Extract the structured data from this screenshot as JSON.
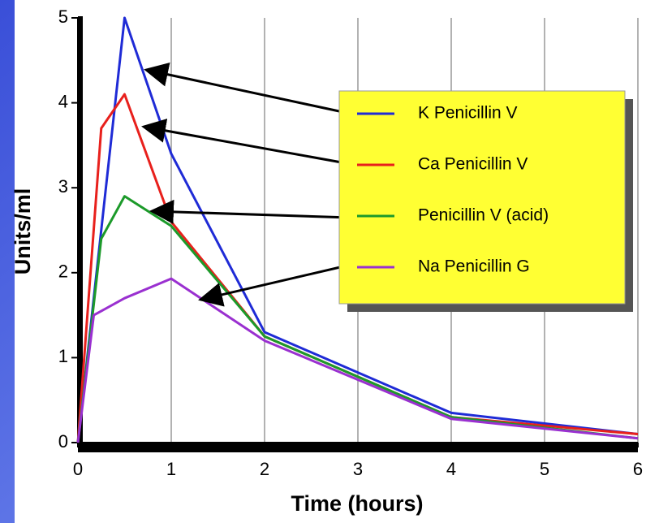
{
  "chart_data": {
    "type": "line",
    "x_label": "Time (hours)",
    "y_label": "Units/ml",
    "xlim": [
      0,
      6
    ],
    "xticks": [
      0,
      1,
      2,
      3,
      4,
      5,
      6
    ],
    "ylim": [
      0,
      5
    ],
    "yticks": [
      0,
      1,
      2,
      3,
      4,
      5
    ],
    "grid": "x",
    "series": [
      {
        "name": "K Penicillin V",
        "color": "#1f2bd6",
        "x": [
          0,
          0.5,
          1,
          2,
          4,
          6
        ],
        "values": [
          0,
          5.0,
          3.4,
          1.3,
          0.35,
          0.1
        ]
      },
      {
        "name": "Ca Penicillin V",
        "color": "#e8201c",
        "x": [
          0,
          0.25,
          0.5,
          1,
          2,
          4,
          6
        ],
        "values": [
          0,
          3.7,
          4.1,
          2.6,
          1.25,
          0.3,
          0.1
        ]
      },
      {
        "name": "Penicillin V (acid)",
        "color": "#1c9a2a",
        "x": [
          0,
          0.25,
          0.5,
          1,
          2,
          4,
          6
        ],
        "values": [
          0,
          2.4,
          2.9,
          2.55,
          1.25,
          0.3,
          0.05
        ]
      },
      {
        "name": "Na Penicillin G",
        "color": "#9a30d0",
        "x": [
          0,
          0.17,
          0.5,
          1,
          2,
          4,
          6
        ],
        "values": [
          0,
          1.5,
          1.7,
          1.93,
          1.2,
          0.28,
          0.05
        ]
      }
    ]
  }
}
